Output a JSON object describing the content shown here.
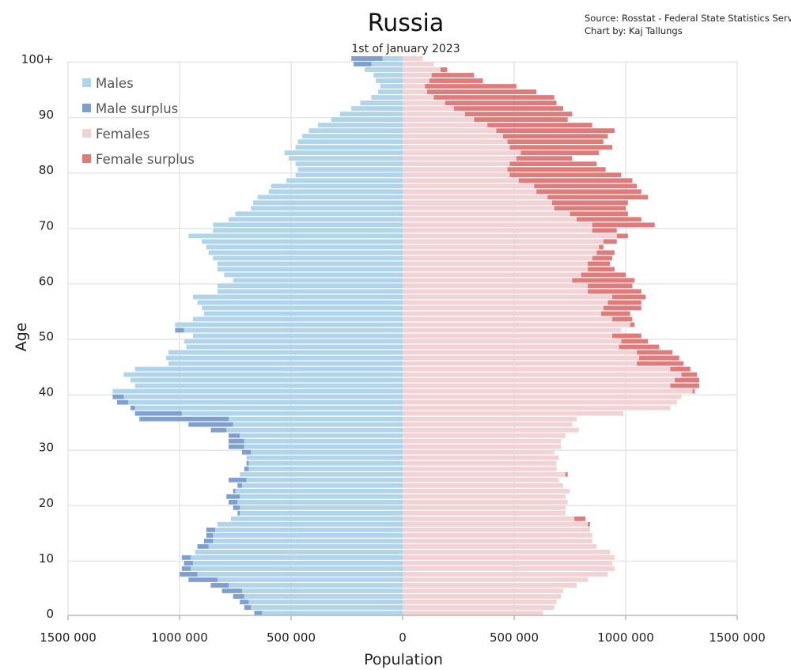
{
  "chart_data": {
    "type": "bar",
    "orientation": "horizontal-population-pyramid",
    "title": "Russia",
    "subtitle": "1st of January 2023",
    "source_line_1": "Source: Rosstat - Federal State Statistics Service",
    "source_line_2": "Chart by: Kaj Tallungs",
    "xlabel": "Population",
    "ylabel": "Age",
    "xlim": [
      -1500000,
      1500000
    ],
    "ylim": [
      0,
      100
    ],
    "x_ticks": [
      {
        "value": -1500000,
        "label": "1500 000"
      },
      {
        "value": -1000000,
        "label": "1000 000"
      },
      {
        "value": -500000,
        "label": "500 000"
      },
      {
        "value": 0,
        "label": "0"
      },
      {
        "value": 500000,
        "label": "500 000"
      },
      {
        "value": 1000000,
        "label": "1000 000"
      },
      {
        "value": 1500000,
        "label": "1500 000"
      }
    ],
    "y_ticks": [
      {
        "value": 0,
        "label": "0"
      },
      {
        "value": 10,
        "label": "10"
      },
      {
        "value": 20,
        "label": "20"
      },
      {
        "value": 30,
        "label": "30"
      },
      {
        "value": 40,
        "label": "40"
      },
      {
        "value": 50,
        "label": "50"
      },
      {
        "value": 60,
        "label": "60"
      },
      {
        "value": 70,
        "label": "70"
      },
      {
        "value": 80,
        "label": "80"
      },
      {
        "value": 90,
        "label": "90"
      },
      {
        "value": 100,
        "label": "100+"
      }
    ],
    "grid": true,
    "legend_position": "top-left",
    "legend": [
      {
        "key": "males",
        "label": "Males"
      },
      {
        "key": "male_surplus",
        "label": "Male surplus"
      },
      {
        "key": "females",
        "label": "Females"
      },
      {
        "key": "female_surplus",
        "label": "Female surplus"
      }
    ],
    "colors": {
      "males": "#b0d4ea",
      "male_surplus": "#7f9fcf",
      "females": "#f2d3d5",
      "female_surplus": "#e07b7b",
      "grid": "#e6e6e6",
      "axis": "#b8b8b8"
    },
    "ages": [
      0,
      1,
      2,
      3,
      4,
      5,
      6,
      7,
      8,
      9,
      10,
      11,
      12,
      13,
      14,
      15,
      16,
      17,
      18,
      19,
      20,
      21,
      22,
      23,
      24,
      25,
      26,
      27,
      28,
      29,
      30,
      31,
      32,
      33,
      34,
      35,
      36,
      37,
      38,
      39,
      40,
      41,
      42,
      43,
      44,
      45,
      46,
      47,
      48,
      49,
      50,
      51,
      52,
      53,
      54,
      55,
      56,
      57,
      58,
      59,
      60,
      61,
      62,
      63,
      64,
      65,
      66,
      67,
      68,
      69,
      70,
      71,
      72,
      73,
      74,
      75,
      76,
      77,
      78,
      79,
      80,
      81,
      82,
      83,
      84,
      85,
      86,
      87,
      88,
      89,
      90,
      91,
      92,
      93,
      94,
      95,
      96,
      97,
      98,
      99,
      100
    ],
    "series": [
      {
        "name": "Males",
        "values": [
          665000,
          710000,
          730000,
          760000,
          810000,
          860000,
          960000,
          1000000,
          990000,
          980000,
          990000,
          930000,
          920000,
          890000,
          880000,
          880000,
          830000,
          770000,
          740000,
          760000,
          780000,
          790000,
          760000,
          740000,
          780000,
          730000,
          710000,
          700000,
          700000,
          720000,
          780000,
          780000,
          780000,
          860000,
          960000,
          1180000,
          1200000,
          1220000,
          1280000,
          1300000,
          1300000,
          1200000,
          1220000,
          1250000,
          1200000,
          1050000,
          1060000,
          1050000,
          970000,
          980000,
          940000,
          1020000,
          1020000,
          940000,
          890000,
          900000,
          920000,
          940000,
          830000,
          830000,
          760000,
          800000,
          830000,
          830000,
          850000,
          870000,
          880000,
          900000,
          960000,
          850000,
          850000,
          780000,
          750000,
          680000,
          670000,
          650000,
          600000,
          590000,
          520000,
          480000,
          470000,
          480000,
          510000,
          530000,
          480000,
          470000,
          450000,
          420000,
          380000,
          320000,
          280000,
          230000,
          190000,
          140000,
          110000,
          100000,
          120000,
          130000,
          170000,
          220000,
          230000
        ]
      },
      {
        "name": "Females",
        "values": [
          630000,
          680000,
          690000,
          710000,
          720000,
          780000,
          830000,
          920000,
          950000,
          940000,
          950000,
          930000,
          870000,
          850000,
          850000,
          840000,
          840000,
          820000,
          730000,
          730000,
          740000,
          730000,
          750000,
          720000,
          700000,
          740000,
          690000,
          690000,
          700000,
          680000,
          710000,
          710000,
          730000,
          790000,
          760000,
          780000,
          990000,
          1200000,
          1230000,
          1250000,
          1310000,
          1330000,
          1330000,
          1320000,
          1290000,
          1260000,
          1240000,
          1210000,
          1150000,
          1100000,
          1070000,
          980000,
          1040000,
          1030000,
          1020000,
          1070000,
          1070000,
          1090000,
          1070000,
          1030000,
          1040000,
          1000000,
          950000,
          930000,
          940000,
          950000,
          900000,
          960000,
          1010000,
          960000,
          1130000,
          1070000,
          1010000,
          1000000,
          1010000,
          1100000,
          1070000,
          1050000,
          1030000,
          980000,
          910000,
          870000,
          760000,
          880000,
          940000,
          900000,
          920000,
          950000,
          850000,
          740000,
          760000,
          720000,
          690000,
          680000,
          600000,
          510000,
          360000,
          320000,
          200000,
          140000,
          90000
        ]
      }
    ]
  }
}
